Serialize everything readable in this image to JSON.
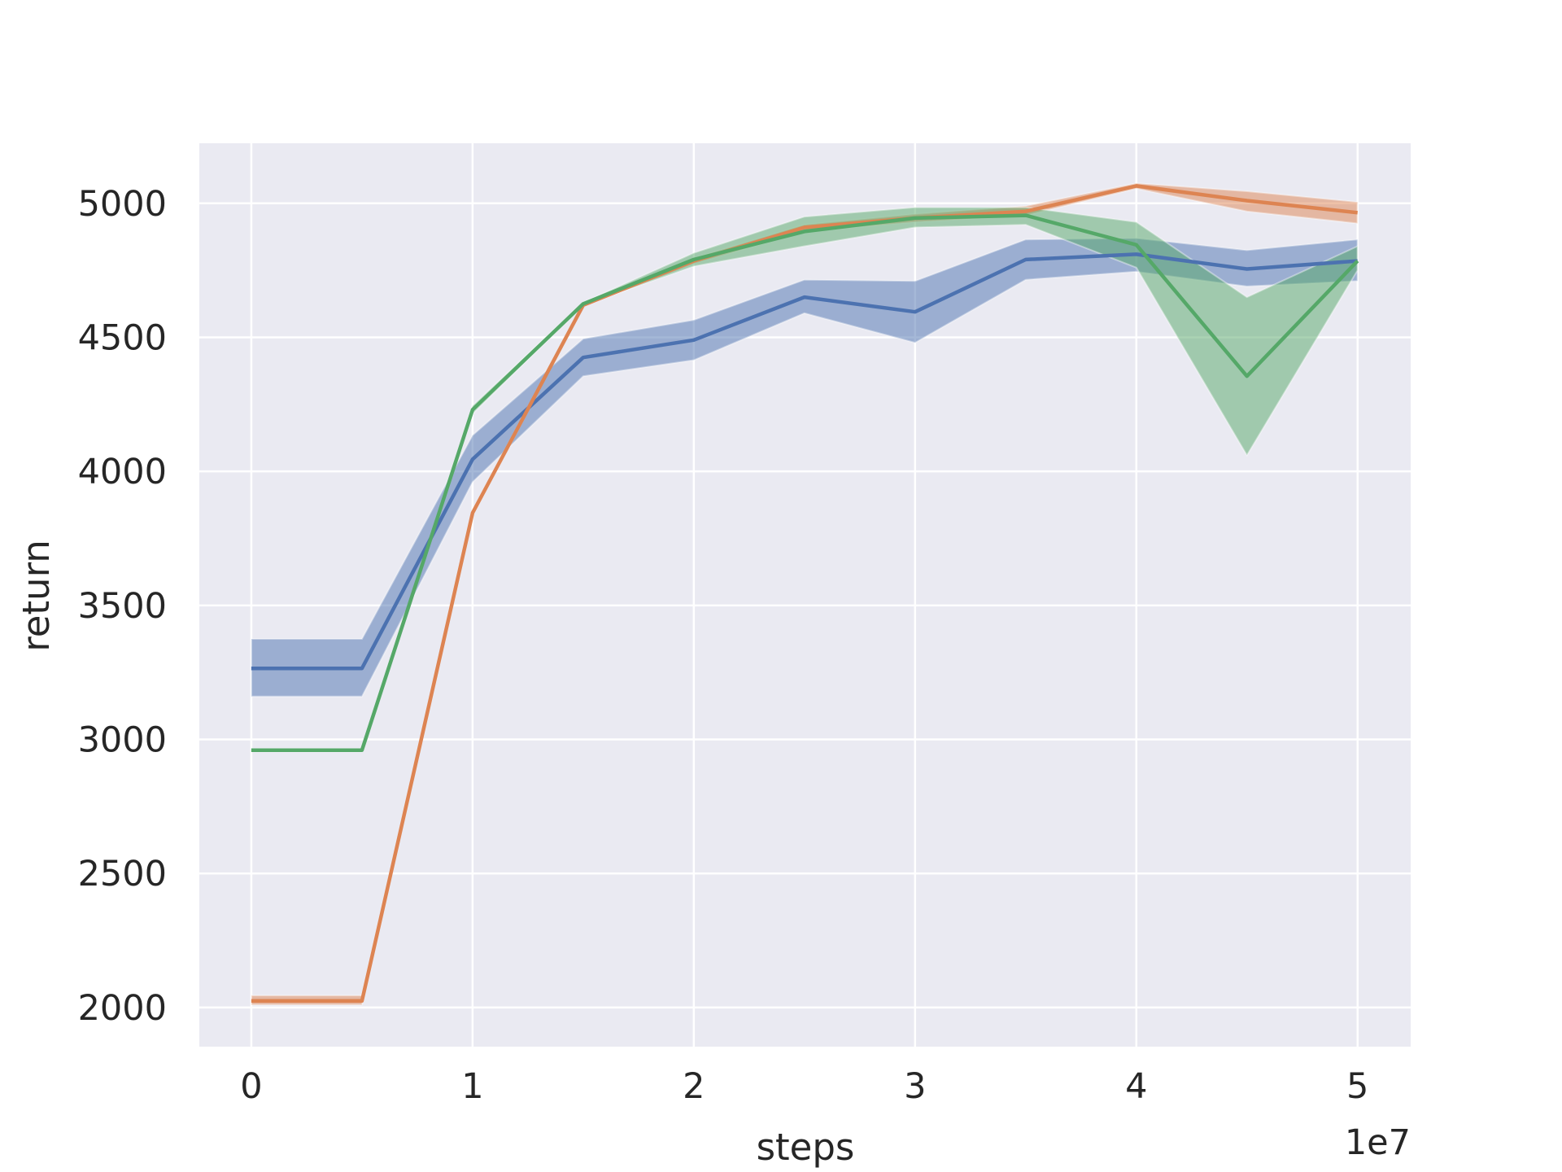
{
  "chart_data": {
    "type": "line",
    "xlabel": "steps",
    "ylabel": "return",
    "x_offset_label": "1e7",
    "x": [
      0,
      5000000,
      10000000,
      15000000,
      20000000,
      25000000,
      30000000,
      35000000,
      40000000,
      45000000,
      50000000
    ],
    "series": [
      {
        "color": "#4c72b0",
        "values": [
          3265,
          3265,
          4045,
          4425,
          4490,
          4650,
          4595,
          4790,
          4810,
          4755,
          4785
        ],
        "lower": [
          3160,
          3160,
          3960,
          4355,
          4415,
          4590,
          4480,
          4715,
          4745,
          4690,
          4710
        ],
        "upper": [
          3375,
          3375,
          4135,
          4495,
          4565,
          4715,
          4710,
          4865,
          4870,
          4825,
          4865
        ]
      },
      {
        "color": "#dd8452",
        "values": [
          2025,
          2025,
          3845,
          4620,
          4785,
          4910,
          4945,
          4970,
          5065,
          5010,
          4965
        ],
        "lower": [
          2010,
          2010,
          3835,
          4615,
          4775,
          4895,
          4930,
          4955,
          5055,
          4970,
          4925
        ],
        "upper": [
          2045,
          2045,
          3855,
          4625,
          4795,
          4920,
          4960,
          4990,
          5075,
          5045,
          5005
        ]
      },
      {
        "color": "#55a868",
        "values": [
          2960,
          2960,
          4230,
          4625,
          4790,
          4895,
          4945,
          4955,
          4845,
          4355,
          4785
        ],
        "lower": [
          2955,
          2955,
          4215,
          4620,
          4765,
          4840,
          4910,
          4920,
          4760,
          4060,
          4750
        ],
        "upper": [
          2965,
          2965,
          4245,
          4630,
          4815,
          4950,
          4985,
          4985,
          4930,
          4650,
          4840
        ]
      }
    ],
    "xlim": [
      -2350000,
      52400000
    ],
    "xticks": [
      0,
      {
        "value": 10000000,
        "label": "1"
      },
      {
        "value": 20000000,
        "label": "2"
      },
      {
        "value": 30000000,
        "label": "3"
      },
      {
        "value": 40000000,
        "label": "4"
      },
      {
        "value": 50000000,
        "label": "5"
      }
    ],
    "ylim": [
      1854,
      5224
    ],
    "yticks": [
      2000,
      2500,
      3000,
      3500,
      4000,
      4500,
      5000
    ],
    "grid": true,
    "background": "#eaeaf2",
    "band_opacity": 0.5
  }
}
